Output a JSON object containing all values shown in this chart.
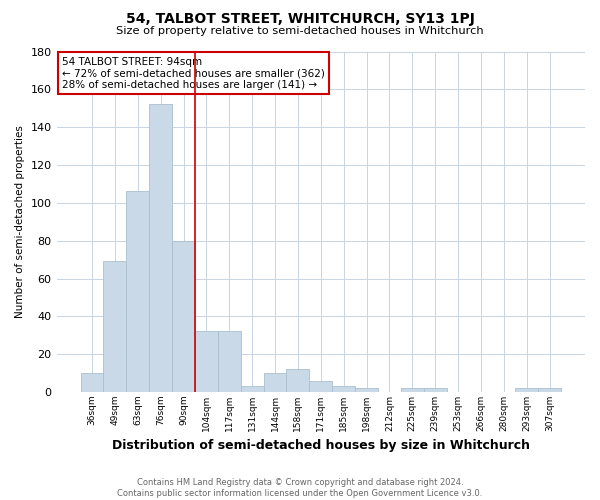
{
  "title": "54, TALBOT STREET, WHITCHURCH, SY13 1PJ",
  "subtitle": "Size of property relative to semi-detached houses in Whitchurch",
  "xlabel": "Distribution of semi-detached houses by size in Whitchurch",
  "ylabel": "Number of semi-detached properties",
  "categories": [
    "36sqm",
    "49sqm",
    "63sqm",
    "76sqm",
    "90sqm",
    "104sqm",
    "117sqm",
    "131sqm",
    "144sqm",
    "158sqm",
    "171sqm",
    "185sqm",
    "198sqm",
    "212sqm",
    "225sqm",
    "239sqm",
    "253sqm",
    "266sqm",
    "280sqm",
    "293sqm",
    "307sqm"
  ],
  "values": [
    10,
    69,
    106,
    152,
    80,
    32,
    32,
    3,
    10,
    12,
    6,
    3,
    2,
    0,
    2,
    2,
    0,
    0,
    0,
    2,
    2
  ],
  "bar_color": "#c9d9e8",
  "bar_edge_color": "#aabfcf",
  "annotation_text_line1": "54 TALBOT STREET: 94sqm",
  "annotation_text_line2": "← 72% of semi-detached houses are smaller (362)",
  "annotation_text_line3": "28% of semi-detached houses are larger (141) →",
  "annotation_box_color": "#ffffff",
  "annotation_box_edge_color": "#cc0000",
  "red_line_index": 4.5,
  "ylim": [
    0,
    180
  ],
  "yticks": [
    0,
    20,
    40,
    60,
    80,
    100,
    120,
    140,
    160,
    180
  ],
  "footer_line1": "Contains HM Land Registry data © Crown copyright and database right 2024.",
  "footer_line2": "Contains public sector information licensed under the Open Government Licence v3.0.",
  "background_color": "#ffffff",
  "grid_color": "#c8d4e0"
}
